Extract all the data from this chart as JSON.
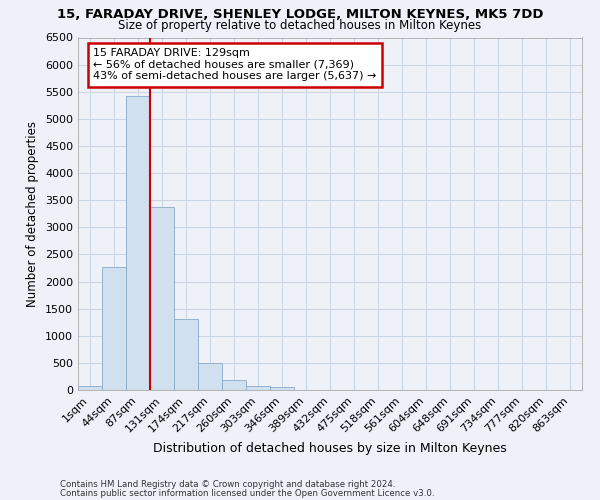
{
  "title1": "15, FARADAY DRIVE, SHENLEY LODGE, MILTON KEYNES, MK5 7DD",
  "title2": "Size of property relative to detached houses in Milton Keynes",
  "xlabel": "Distribution of detached houses by size in Milton Keynes",
  "ylabel": "Number of detached properties",
  "footer1": "Contains HM Land Registry data © Crown copyright and database right 2024.",
  "footer2": "Contains public sector information licensed under the Open Government Licence v3.0.",
  "categories": [
    "1sqm",
    "44sqm",
    "87sqm",
    "131sqm",
    "174sqm",
    "217sqm",
    "260sqm",
    "303sqm",
    "346sqm",
    "389sqm",
    "432sqm",
    "475sqm",
    "518sqm",
    "561sqm",
    "604sqm",
    "648sqm",
    "691sqm",
    "734sqm",
    "777sqm",
    "820sqm",
    "863sqm"
  ],
  "values": [
    70,
    2270,
    5430,
    3380,
    1310,
    490,
    190,
    80,
    50,
    0,
    0,
    0,
    0,
    0,
    0,
    0,
    0,
    0,
    0,
    0,
    0
  ],
  "bar_color": "#d0e0ef",
  "bar_edgecolor": "#88aac8",
  "grid_color": "#c8d4e4",
  "background_color": "#eef2f8",
  "marker_label": "15 FARADAY DRIVE: 129sqm",
  "annotation_line1": "← 56% of detached houses are smaller (7,369)",
  "annotation_line2": "43% of semi-detached houses are larger (5,637) →",
  "annotation_box_color": "#ffffff",
  "annotation_box_edgecolor": "#cc0000",
  "vline_color": "#cc0000",
  "vline_x": 2.5,
  "ylim": [
    0,
    6500
  ],
  "yticks": [
    0,
    500,
    1000,
    1500,
    2000,
    2500,
    3000,
    3500,
    4000,
    4500,
    5000,
    5500,
    6000,
    6500
  ]
}
